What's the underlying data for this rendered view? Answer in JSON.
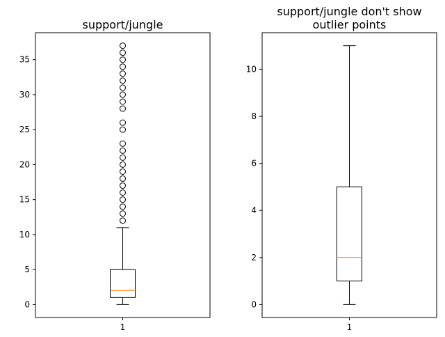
{
  "chart_data": [
    {
      "type": "box",
      "title": "support/jungle",
      "title_lines": [
        "support/jungle"
      ],
      "xlabel": "",
      "ylabel": "",
      "categories": [
        "1"
      ],
      "ylim": [
        -1.85,
        38.85
      ],
      "yticks": [
        0,
        5,
        10,
        15,
        20,
        25,
        30,
        35
      ],
      "box": {
        "whisker_low": 0,
        "q1": 1,
        "median": 2,
        "q3": 5,
        "whisker_high": 11
      },
      "outliers": [
        12,
        13,
        14,
        15,
        16,
        17,
        18,
        19,
        20,
        21,
        22,
        23,
        25,
        26,
        28,
        29,
        30,
        31,
        32,
        33,
        34,
        35,
        36,
        37
      ],
      "show_outliers": true,
      "grid": false
    },
    {
      "type": "box",
      "title": "support/jungle don't show outlier points",
      "title_lines": [
        "support/jungle don't show",
        "outlier points"
      ],
      "xlabel": "",
      "ylabel": "",
      "categories": [
        "1"
      ],
      "ylim": [
        -0.55,
        11.55
      ],
      "yticks": [
        0,
        2,
        4,
        6,
        8,
        10
      ],
      "box": {
        "whisker_low": 0,
        "q1": 1,
        "median": 2,
        "q3": 5,
        "whisker_high": 11
      },
      "outliers": [],
      "show_outliers": false,
      "grid": false
    }
  ],
  "colors": {
    "median": "#ff7f0e",
    "box": "#000000",
    "background": "#ffffff"
  }
}
